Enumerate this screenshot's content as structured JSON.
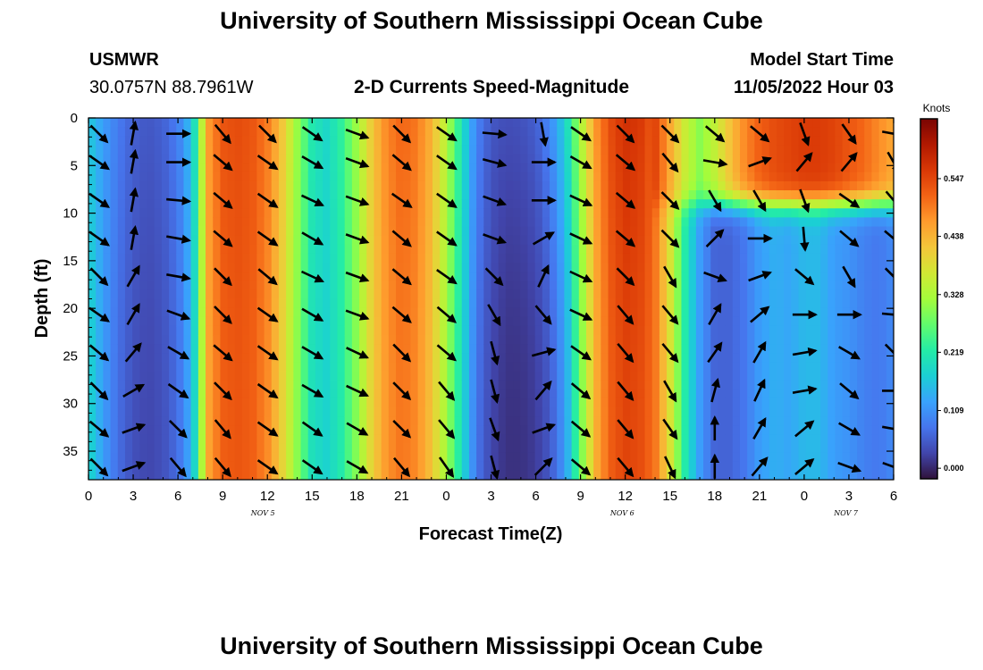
{
  "header": {
    "title": "University of Southern Mississippi Ocean Cube",
    "station": "USMWR",
    "coords": "30.0757N  88.7961W",
    "subtitle": "2-D Currents Speed-Magnitude",
    "model_label": "Model Start Time",
    "model_time": "11/05/2022 Hour 03"
  },
  "footer": {
    "title": "University of Southern Mississippi Ocean Cube"
  },
  "colorbar": {
    "unit": "Knots",
    "ticks": [
      "0.000",
      "0.109",
      "0.219",
      "0.328",
      "0.438",
      "0.547"
    ],
    "values": [
      0.0,
      0.109,
      0.219,
      0.328,
      0.438,
      0.547
    ],
    "range": [
      -0.02,
      0.66
    ],
    "colors": [
      "#30123b",
      "#4145ab",
      "#4675ed",
      "#39a2fc",
      "#1bcfd4",
      "#24eca6",
      "#61fc6c",
      "#a4fc3b",
      "#d1e834",
      "#f3c63a",
      "#fe9b2d",
      "#f36315",
      "#d93806",
      "#b11901",
      "#7a0402"
    ]
  },
  "chart_data": {
    "type": "heatmap",
    "title": "2-D Currents Speed-Magnitude",
    "xlabel": "Forecast Time(Z)",
    "ylabel": "Depth (ft)",
    "x_unit": "hours since 11/05 00Z",
    "xlim": [
      0,
      54
    ],
    "ylim": [
      38,
      0
    ],
    "x_tick_labels": [
      "0",
      "3",
      "6",
      "9",
      "12",
      "15",
      "18",
      "21",
      "0",
      "3",
      "6",
      "9",
      "12",
      "15",
      "18",
      "21",
      "0",
      "3",
      "6"
    ],
    "y_ticks": [
      0,
      5,
      10,
      15,
      20,
      25,
      30,
      35
    ],
    "date_labels": [
      {
        "label": "NOV 5",
        "x": 11.7
      },
      {
        "label": "NOV 6",
        "x": 35.8
      },
      {
        "label": "NOV 7",
        "x": 50.8
      }
    ],
    "speed_profile": {
      "hours": [
        0,
        1,
        2,
        3,
        4,
        5,
        6,
        7,
        7.5,
        8,
        9,
        10,
        11,
        12,
        13,
        14,
        15,
        16,
        17,
        18,
        19,
        20,
        21,
        22,
        23,
        24,
        25,
        26,
        27,
        28,
        29,
        30,
        31,
        32,
        33,
        34,
        35,
        36,
        37,
        38,
        39,
        40,
        41,
        42,
        43,
        44,
        45,
        46,
        47,
        48,
        49,
        50,
        51,
        52,
        53,
        54
      ],
      "deep": [
        0.19,
        0.12,
        0.07,
        0.04,
        0.03,
        0.04,
        0.07,
        0.15,
        0.3,
        0.45,
        0.52,
        0.53,
        0.52,
        0.48,
        0.4,
        0.3,
        0.2,
        0.18,
        0.22,
        0.3,
        0.4,
        0.47,
        0.5,
        0.48,
        0.42,
        0.32,
        0.2,
        0.08,
        0.03,
        0.01,
        0.01,
        0.02,
        0.05,
        0.12,
        0.28,
        0.44,
        0.52,
        0.55,
        0.54,
        0.5,
        0.38,
        0.22,
        0.12,
        0.06,
        0.06,
        0.08,
        0.12,
        0.14,
        0.13,
        0.15,
        0.15,
        0.12,
        0.11,
        0.09,
        0.08,
        0.1
      ],
      "surface": [
        0.13,
        0.12,
        0.11,
        0.09,
        0.08,
        0.09,
        0.12,
        0.2,
        0.35,
        0.48,
        0.55,
        0.56,
        0.55,
        0.52,
        0.45,
        0.33,
        0.24,
        0.2,
        0.26,
        0.35,
        0.44,
        0.51,
        0.54,
        0.53,
        0.48,
        0.38,
        0.22,
        0.12,
        0.08,
        0.09,
        0.1,
        0.12,
        0.2,
        0.3,
        0.42,
        0.52,
        0.58,
        0.62,
        0.61,
        0.55,
        0.45,
        0.36,
        0.3,
        0.35,
        0.42,
        0.48,
        0.52,
        0.54,
        0.55,
        0.56,
        0.56,
        0.55,
        0.53,
        0.51,
        0.48,
        0.45
      ],
      "mixed_layer_depth_ft_after_hour_38": 9
    },
    "vectors": {
      "hours": [
        0.7,
        3.0,
        6.0,
        9.0,
        12.0,
        15.0,
        18.0,
        21.0,
        24.0,
        27.2,
        30.5,
        33.0,
        36.0,
        39.0,
        42.0,
        45.0,
        48.0,
        51.0,
        54.0
      ],
      "depths_ft": [
        1,
        4,
        8,
        12,
        16,
        20,
        24,
        28,
        32,
        36
      ],
      "direction_deg": [
        [
          135,
          10,
          90,
          140,
          135,
          125,
          110,
          135,
          125,
          95,
          170,
          125,
          135,
          135,
          130,
          130,
          160,
          145,
          100
        ],
        [
          125,
          10,
          90,
          130,
          125,
          120,
          110,
          130,
          125,
          105,
          90,
          120,
          130,
          140,
          100,
          70,
          40,
          40,
          150
        ],
        [
          125,
          10,
          95,
          130,
          125,
          115,
          110,
          125,
          125,
          110,
          90,
          115,
          130,
          135,
          150,
          150,
          160,
          125,
          140
        ],
        [
          125,
          10,
          100,
          130,
          125,
          120,
          110,
          130,
          125,
          110,
          60,
          115,
          130,
          135,
          45,
          90,
          175,
          130,
          130
        ],
        [
          135,
          30,
          100,
          135,
          130,
          115,
          110,
          130,
          125,
          135,
          25,
          115,
          135,
          150,
          110,
          70,
          130,
          150,
          135
        ],
        [
          125,
          30,
          110,
          135,
          125,
          120,
          110,
          130,
          130,
          150,
          140,
          115,
          140,
          140,
          30,
          50,
          90,
          90,
          95
        ],
        [
          130,
          40,
          120,
          130,
          125,
          120,
          115,
          135,
          130,
          165,
          75,
          125,
          140,
          140,
          35,
          30,
          80,
          120,
          135
        ],
        [
          135,
          60,
          125,
          135,
          125,
          120,
          115,
          135,
          140,
          165,
          40,
          130,
          140,
          150,
          15,
          25,
          80,
          130,
          90
        ],
        [
          130,
          70,
          135,
          140,
          125,
          125,
          120,
          135,
          140,
          160,
          70,
          130,
          140,
          145,
          0,
          30,
          50,
          120,
          100
        ],
        [
          135,
          70,
          140,
          140,
          125,
          125,
          120,
          140,
          145,
          165,
          45,
          130,
          140,
          155,
          0,
          40,
          50,
          110,
          110
        ]
      ]
    }
  }
}
